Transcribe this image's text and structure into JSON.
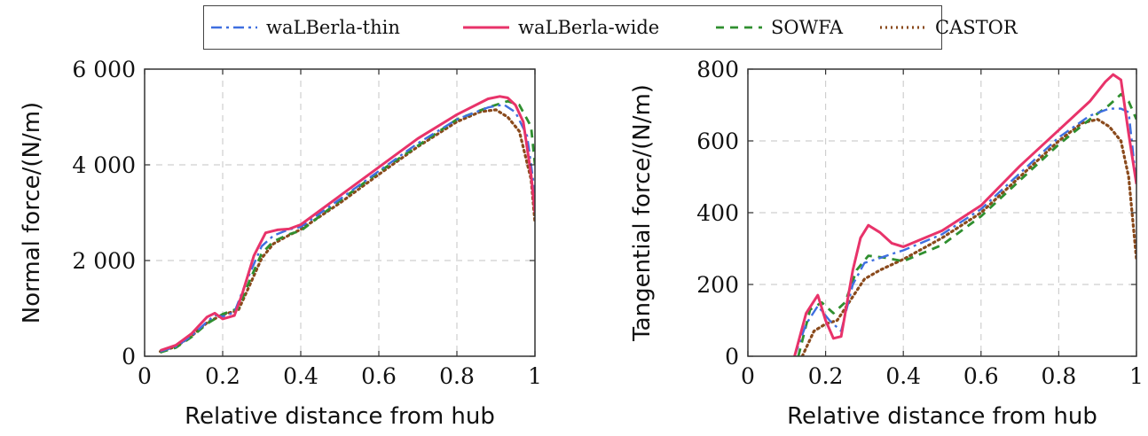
{
  "legend": {
    "items": [
      {
        "label": "waLBerla-thin",
        "series": "walberla_thin"
      },
      {
        "label": "waLBerla-wide",
        "series": "walberla_wide"
      },
      {
        "label": "SOWFA",
        "series": "sowfa"
      },
      {
        "label": "CASTOR",
        "series": "castor"
      }
    ]
  },
  "styles": {
    "walberla_thin": {
      "color": "#3f6fe0",
      "dash": "12 5 3 5",
      "width": 2.4
    },
    "walberla_wide": {
      "color": "#e8336a",
      "dash": "",
      "width": 3.0
    },
    "sowfa": {
      "color": "#2f8f2f",
      "dash": "9 7",
      "width": 2.8
    },
    "castor": {
      "color": "#8a4a1c",
      "dash": "2 4",
      "width": 3.2
    }
  },
  "chart_data": [
    {
      "type": "line",
      "xlabel": "Relative distance from hub",
      "ylabel": "Normal force/(N/m)",
      "xlim": [
        0,
        1
      ],
      "ylim": [
        0,
        6000
      ],
      "xticks": [
        0,
        0.2,
        0.4,
        0.6,
        0.8,
        1
      ],
      "xtick_labels": [
        "0",
        "0.2",
        "0.4",
        "0.6",
        "0.8",
        "1"
      ],
      "yticks": [
        0,
        2000,
        4000,
        6000
      ],
      "ytick_labels": [
        "0",
        "2 000",
        "4 000",
        "6 000"
      ],
      "grid": true,
      "series": [
        {
          "name": "waLBerla-thin",
          "key": "walberla_thin",
          "x": [
            0.04,
            0.08,
            0.12,
            0.16,
            0.18,
            0.2,
            0.23,
            0.26,
            0.3,
            0.33,
            0.37,
            0.4,
            0.5,
            0.6,
            0.7,
            0.8,
            0.88,
            0.92,
            0.95,
            0.98,
            1.0
          ],
          "y": [
            100,
            200,
            420,
            720,
            860,
            830,
            920,
            1550,
            2300,
            2520,
            2650,
            2700,
            3280,
            3870,
            4450,
            4950,
            5200,
            5260,
            5100,
            4600,
            3400
          ]
        },
        {
          "name": "waLBerla-wide",
          "key": "walberla_wide",
          "x": [
            0.04,
            0.08,
            0.12,
            0.16,
            0.18,
            0.2,
            0.23,
            0.25,
            0.28,
            0.31,
            0.34,
            0.37,
            0.4,
            0.5,
            0.6,
            0.7,
            0.8,
            0.88,
            0.91,
            0.93,
            0.95,
            0.97,
            0.99,
            1.0
          ],
          "y": [
            120,
            230,
            470,
            820,
            900,
            780,
            850,
            1300,
            2100,
            2580,
            2640,
            2660,
            2750,
            3350,
            3950,
            4550,
            5050,
            5380,
            5430,
            5400,
            5250,
            4900,
            3800,
            3000
          ]
        },
        {
          "name": "SOWFA",
          "key": "sowfa",
          "x": [
            0.04,
            0.08,
            0.12,
            0.16,
            0.2,
            0.24,
            0.27,
            0.3,
            0.33,
            0.37,
            0.4,
            0.5,
            0.6,
            0.7,
            0.8,
            0.88,
            0.93,
            0.96,
            0.99,
            1.0
          ],
          "y": [
            80,
            180,
            400,
            680,
            880,
            1000,
            1600,
            2150,
            2400,
            2550,
            2620,
            3250,
            3850,
            4400,
            4950,
            5200,
            5330,
            5250,
            4800,
            4000
          ]
        },
        {
          "name": "CASTOR",
          "key": "castor",
          "x": [
            0.04,
            0.08,
            0.12,
            0.16,
            0.2,
            0.24,
            0.27,
            0.3,
            0.33,
            0.37,
            0.4,
            0.5,
            0.6,
            0.7,
            0.8,
            0.86,
            0.9,
            0.93,
            0.96,
            0.99,
            1.0
          ],
          "y": [
            100,
            200,
            420,
            700,
            870,
            960,
            1500,
            2050,
            2350,
            2530,
            2650,
            3200,
            3800,
            4380,
            4900,
            5110,
            5150,
            5000,
            4700,
            3700,
            2800
          ]
        }
      ]
    },
    {
      "type": "line",
      "xlabel": "Relative distance from hub",
      "ylabel": "Tangential force/(N/m)",
      "xlim": [
        0,
        1
      ],
      "ylim": [
        0,
        800
      ],
      "xticks": [
        0,
        0.2,
        0.4,
        0.6,
        0.8,
        1
      ],
      "xtick_labels": [
        "0",
        "0.2",
        "0.4",
        "0.6",
        "0.8",
        "1"
      ],
      "yticks": [
        0,
        200,
        400,
        600,
        800
      ],
      "ytick_labels": [
        "0",
        "200",
        "400",
        "600",
        "800"
      ],
      "grid": true,
      "series": [
        {
          "name": "waLBerla-thin",
          "key": "walberla_thin",
          "x": [
            0.12,
            0.15,
            0.18,
            0.21,
            0.24,
            0.27,
            0.3,
            0.33,
            0.37,
            0.4,
            0.5,
            0.6,
            0.7,
            0.8,
            0.88,
            0.93,
            0.96,
            0.98,
            1.0
          ],
          "y": [
            0,
            90,
            140,
            100,
            70,
            200,
            260,
            270,
            285,
            295,
            340,
            410,
            510,
            610,
            670,
            690,
            690,
            680,
            480
          ]
        },
        {
          "name": "waLBerla-wide",
          "key": "walberla_wide",
          "x": [
            0.12,
            0.15,
            0.18,
            0.2,
            0.22,
            0.24,
            0.27,
            0.29,
            0.31,
            0.34,
            0.37,
            0.4,
            0.5,
            0.6,
            0.7,
            0.8,
            0.88,
            0.92,
            0.94,
            0.96,
            0.98,
            1.0
          ],
          "y": [
            0,
            120,
            170,
            100,
            50,
            55,
            240,
            330,
            365,
            345,
            315,
            305,
            350,
            420,
            530,
            630,
            710,
            765,
            785,
            770,
            620,
            480
          ]
        },
        {
          "name": "SOWFA",
          "key": "sowfa",
          "x": [
            0.13,
            0.16,
            0.19,
            0.22,
            0.25,
            0.28,
            0.31,
            0.35,
            0.4,
            0.5,
            0.6,
            0.7,
            0.8,
            0.88,
            0.93,
            0.96,
            0.98,
            1.0
          ],
          "y": [
            0,
            130,
            150,
            120,
            150,
            240,
            280,
            275,
            265,
            310,
            390,
            490,
            590,
            660,
            700,
            730,
            710,
            660
          ]
        },
        {
          "name": "CASTOR",
          "key": "castor",
          "x": [
            0.14,
            0.17,
            0.2,
            0.23,
            0.26,
            0.3,
            0.34,
            0.4,
            0.5,
            0.6,
            0.7,
            0.8,
            0.86,
            0.9,
            0.93,
            0.96,
            0.98,
            1.0
          ],
          "y": [
            0,
            70,
            90,
            100,
            150,
            215,
            240,
            270,
            330,
            400,
            500,
            600,
            650,
            660,
            640,
            600,
            500,
            270
          ]
        }
      ]
    }
  ]
}
